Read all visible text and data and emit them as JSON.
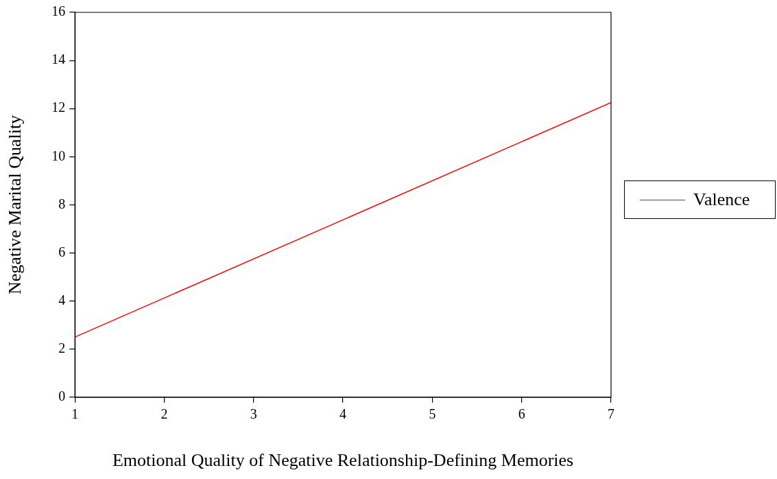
{
  "chart_data": {
    "type": "line",
    "xlabel": "Emotional Quality of Negative Relationship-Defining Memories",
    "ylabel": "Negative Marital Quality",
    "x": [
      1,
      7
    ],
    "series": [
      {
        "name": "Valence",
        "color": "#ff0000",
        "values": [
          2.5,
          12.25
        ]
      }
    ],
    "xlim": [
      1,
      7
    ],
    "xticks": [
      1,
      2,
      3,
      4,
      5,
      6,
      7
    ],
    "ylim": [
      0,
      16
    ],
    "yticks": [
      0,
      2,
      4,
      6,
      8,
      10,
      12,
      14,
      16
    ],
    "grid": false,
    "legend": "right",
    "marker": "none",
    "line_style": "solid"
  }
}
